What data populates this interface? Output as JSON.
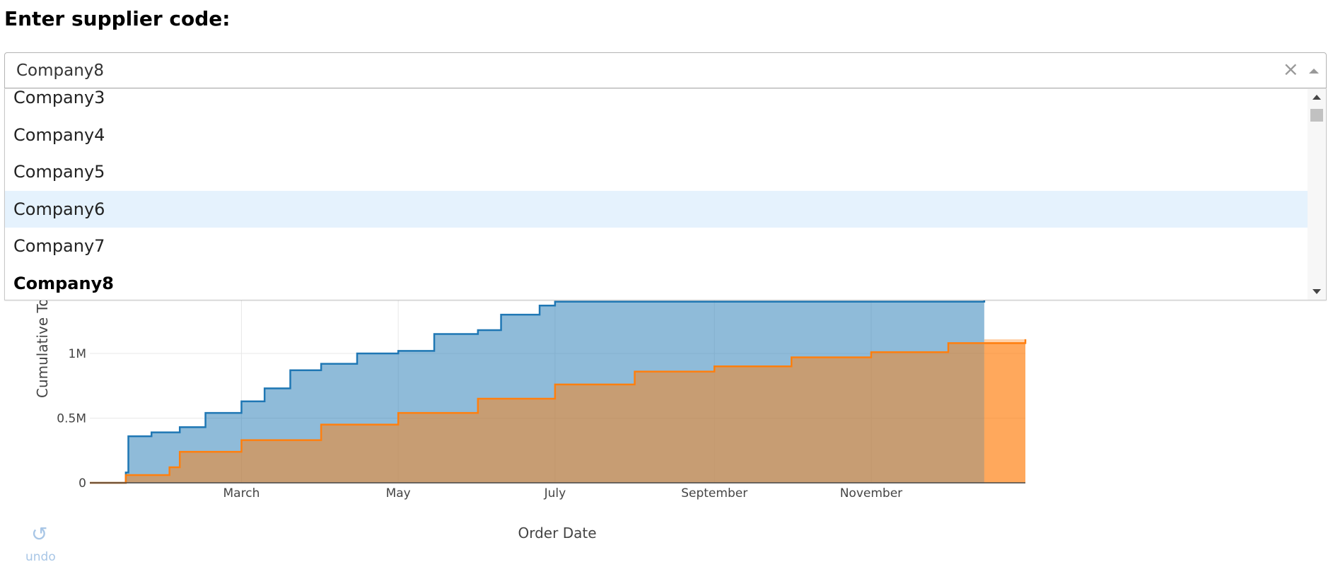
{
  "heading": "Enter supplier code:",
  "dropdown": {
    "value": "Company8",
    "options": [
      "Company3",
      "Company4",
      "Company5",
      "Company6",
      "Company7",
      "Company8"
    ],
    "focused_option": "Company6",
    "selected_option": "Company8"
  },
  "undo": {
    "label": "undo",
    "icon": "undo-icon"
  },
  "chart_data": {
    "type": "area",
    "xlabel": "Order Date",
    "ylabel": "Cumulative To",
    "x_ticks": [
      "March",
      "May",
      "July",
      "September",
      "November"
    ],
    "y_ticks": [
      "0",
      "0.5M",
      "1M"
    ],
    "ylim": [
      0,
      1600000
    ],
    "grid": true,
    "series": [
      {
        "color": "#1f77b4",
        "points": [
          [
            "Jan 1",
            0
          ],
          [
            "Jan 15",
            80000
          ],
          [
            "Jan 16",
            360000
          ],
          [
            "Jan 25",
            390000
          ],
          [
            "Feb 5",
            430000
          ],
          [
            "Feb 15",
            540000
          ],
          [
            "Mar 1",
            630000
          ],
          [
            "Mar 10",
            730000
          ],
          [
            "Mar 20",
            870000
          ],
          [
            "Apr 1",
            920000
          ],
          [
            "Apr 15",
            1000000
          ],
          [
            "May 1",
            1020000
          ],
          [
            "May 15",
            1150000
          ],
          [
            "Jun 1",
            1180000
          ],
          [
            "Jun 10",
            1300000
          ],
          [
            "Jun 25",
            1370000
          ],
          [
            "Jul 1",
            1400000
          ],
          [
            "Dec 15",
            1500000
          ]
        ]
      },
      {
        "color": "#ff7f0e",
        "points": [
          [
            "Jan 1",
            0
          ],
          [
            "Jan 15",
            60000
          ],
          [
            "Feb 1",
            120000
          ],
          [
            "Feb 5",
            240000
          ],
          [
            "Mar 1",
            330000
          ],
          [
            "Apr 1",
            450000
          ],
          [
            "May 1",
            540000
          ],
          [
            "Jun 1",
            650000
          ],
          [
            "Jul 1",
            760000
          ],
          [
            "Aug 1",
            860000
          ],
          [
            "Sep 1",
            900000
          ],
          [
            "Oct 1",
            970000
          ],
          [
            "Nov 1",
            1010000
          ],
          [
            "Dec 1",
            1080000
          ],
          [
            "Dec 31",
            1110000
          ]
        ]
      }
    ]
  }
}
